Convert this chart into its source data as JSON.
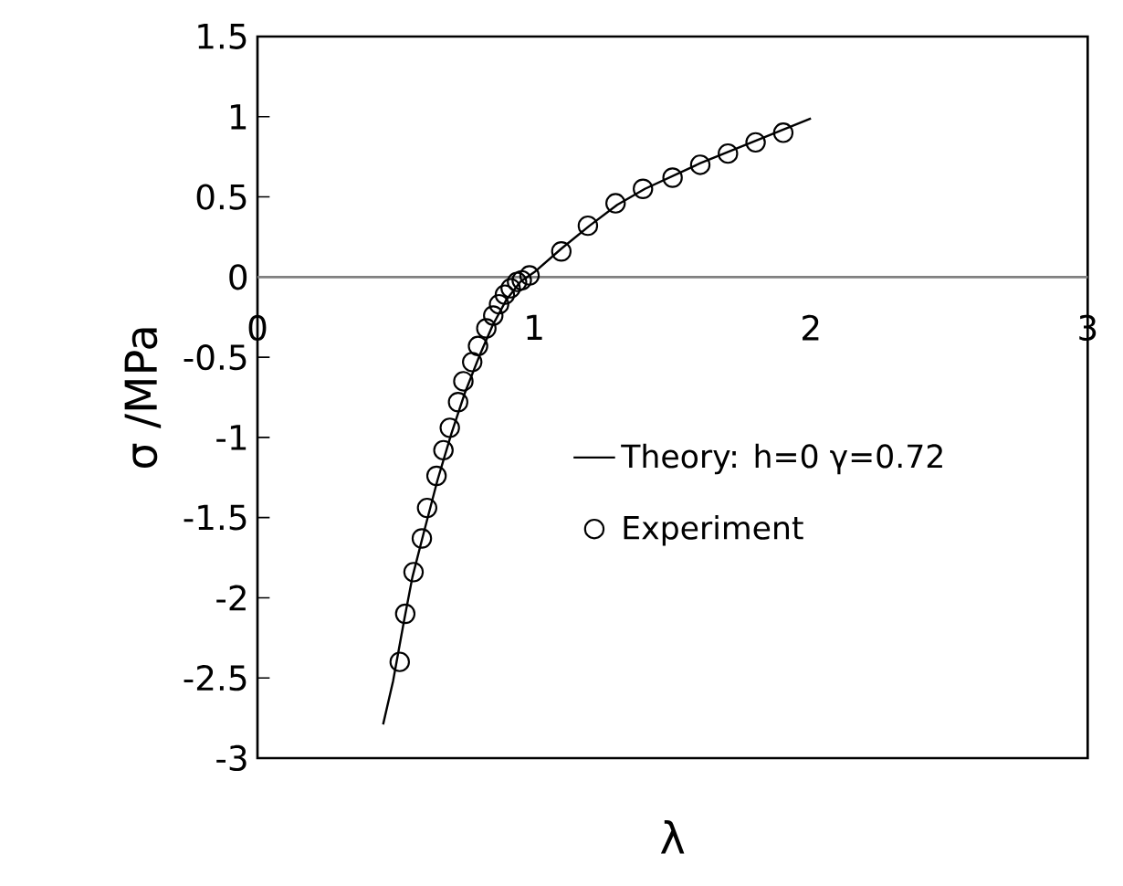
{
  "chart_data": {
    "type": "scatter",
    "xlabel": "λ",
    "ylabel": "σ /MPa",
    "xlim": [
      0,
      3
    ],
    "ylim": [
      -3,
      1.5
    ],
    "xticks": [
      0,
      1,
      2,
      3
    ],
    "yticks": [
      1.5,
      1,
      0.5,
      0,
      -0.5,
      -1,
      -1.5,
      -2,
      -2.5,
      -3
    ],
    "legend": "right",
    "grid": false,
    "series": [
      {
        "name": "Theory: h=0 γ=0.72",
        "type": "line",
        "color": "#000000",
        "marker": "none",
        "line_style": "solid",
        "x": [
          0.454,
          0.49,
          0.53,
          0.56,
          0.6,
          0.65,
          0.7,
          0.75,
          0.8,
          0.85,
          0.9,
          0.95,
          1.0,
          1.1,
          1.2,
          1.3,
          1.4,
          1.5,
          1.6,
          1.7,
          1.8,
          1.9,
          2.0
        ],
        "values": [
          -2.79,
          -2.52,
          -2.14,
          -1.87,
          -1.6,
          -1.27,
          -0.98,
          -0.72,
          -0.5,
          -0.3,
          -0.14,
          -0.03,
          0.03,
          0.18,
          0.32,
          0.45,
          0.55,
          0.63,
          0.71,
          0.78,
          0.85,
          0.92,
          0.99
        ]
      },
      {
        "name": "Experiment",
        "color": "#000000",
        "marker": "circle",
        "x": [
          0.514,
          0.534,
          0.564,
          0.594,
          0.613,
          0.647,
          0.672,
          0.695,
          0.725,
          0.744,
          0.776,
          0.797,
          0.827,
          0.852,
          0.873,
          0.894,
          0.915,
          0.938,
          0.955,
          0.983,
          1.098,
          1.194,
          1.294,
          1.393,
          1.5,
          1.6,
          1.7,
          1.8,
          1.9
        ],
        "values": [
          -2.4,
          -2.1,
          -1.84,
          -1.63,
          -1.44,
          -1.24,
          -1.08,
          -0.94,
          -0.78,
          -0.65,
          -0.53,
          -0.43,
          -0.32,
          -0.24,
          -0.17,
          -0.11,
          -0.07,
          -0.03,
          -0.02,
          0.01,
          0.16,
          0.32,
          0.46,
          0.55,
          0.62,
          0.7,
          0.77,
          0.84,
          0.9
        ]
      }
    ]
  }
}
